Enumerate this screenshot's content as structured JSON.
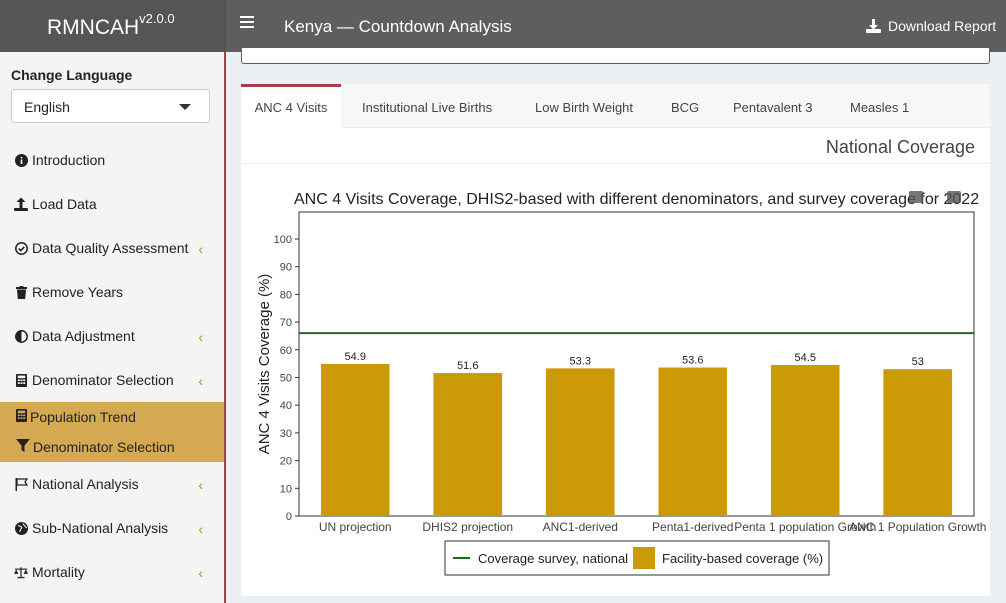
{
  "app": {
    "name": "RMNCAH",
    "version": "v2.0.0"
  },
  "header": {
    "title": "Kenya — Countdown Analysis",
    "download_label": "Download Report"
  },
  "sidebar": {
    "language_label": "Change Language",
    "language_value": "English",
    "items": [
      {
        "label": "Introduction",
        "icon": "info-icon"
      },
      {
        "label": "Load Data",
        "icon": "upload-icon"
      },
      {
        "label": "Data Quality Assessment",
        "icon": "check-circle-icon"
      },
      {
        "label": "Remove Years",
        "icon": "trash-icon"
      },
      {
        "label": "Data Adjustment",
        "icon": "adjust-icon"
      },
      {
        "label": "Denominator Selection",
        "icon": "calculator-icon"
      },
      {
        "label": "National Analysis",
        "icon": "flag-icon"
      },
      {
        "label": "Sub-National Analysis",
        "icon": "globe-icon"
      },
      {
        "label": "Mortality",
        "icon": "balance-scale-icon"
      }
    ],
    "sub_items": [
      {
        "label": "Population Trend",
        "icon": "calculator-icon"
      },
      {
        "label": "Denominator Selection",
        "icon": "filter-icon"
      }
    ]
  },
  "tabs": [
    {
      "label": "ANC 4 Visits"
    },
    {
      "label": "Institutional Live Births"
    },
    {
      "label": "Low Birth Weight"
    },
    {
      "label": "BCG"
    },
    {
      "label": "Pentavalent 3"
    },
    {
      "label": "Measles 1"
    }
  ],
  "panel": {
    "title": "National Coverage"
  },
  "chart_data": {
    "type": "bar",
    "title": "ANC 4 Visits Coverage, DHIS2-based with different denominators, and survey coverage for 2022",
    "ylabel": "ANC 4 Visits Coverage (%)",
    "xlabel": "",
    "ylim": [
      0,
      100
    ],
    "yticks": [
      0,
      10,
      20,
      30,
      40,
      50,
      60,
      70,
      80,
      90,
      100
    ],
    "categories": [
      "UN projection",
      "DHIS2 projection",
      "ANC1-derived",
      "Penta1-derived",
      "Penta 1 population Growth",
      "ANC 1 Population Growth"
    ],
    "series": [
      {
        "name": "Facility-based coverage (%)",
        "values": [
          54.9,
          51.6,
          53.3,
          53.6,
          54.5,
          53
        ],
        "color": "#cc9a06"
      }
    ],
    "reference_line": {
      "name": "Coverage survey, national",
      "value": 66,
      "color": "#1e6b1e"
    },
    "data_labels": [
      "54.9",
      "51.6",
      "53.3",
      "53.6",
      "54.5",
      "53"
    ],
    "grid": false,
    "legend": "bottom"
  }
}
